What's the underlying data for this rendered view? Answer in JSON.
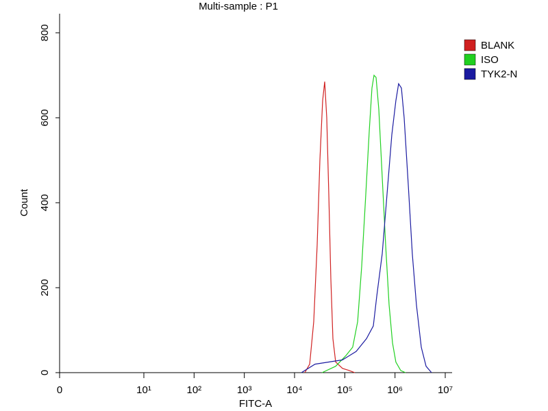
{
  "chart_data": {
    "type": "line",
    "title": "Multi-sample : P1",
    "x_label": "FITC-A",
    "y_label": "Count",
    "xscale": "log",
    "xlim": [
      0,
      10000000
    ],
    "xticks": [
      0,
      {
        "value": 10,
        "label": "10¹"
      },
      {
        "value": 100,
        "label": "10²"
      },
      {
        "value": 1000,
        "label": "10³"
      },
      {
        "value": 10000,
        "label": "10⁴"
      },
      {
        "value": 100000,
        "label": "10⁵"
      },
      {
        "value": 1000000,
        "label": "10⁶"
      },
      {
        "value": 10000000,
        "label": "10⁷"
      }
    ],
    "ylim": [
      0,
      845
    ],
    "yticks": [
      0,
      200,
      400,
      600,
      800
    ],
    "legend": "right",
    "series": [
      {
        "name": "BLANK",
        "color": "#d02020",
        "x": [
          16000,
          20000,
          24100,
          28200,
          32000,
          36200,
          39800,
          43800,
          48100,
          52800,
          58000,
          65800,
          90200,
          123000,
          158000
        ],
        "values": [
          0,
          20,
          120,
          300,
          500,
          640,
          685,
          600,
          420,
          220,
          80,
          25,
          10,
          5,
          0
        ]
      },
      {
        "name": "ISO",
        "color": "#20d020",
        "x": [
          35200,
          65800,
          105000,
          144000,
          180000,
          217000,
          262000,
          307000,
          348000,
          382000,
          420000,
          476000,
          556000,
          651000,
          762000,
          892000,
          1040000,
          1300000,
          1620000
        ],
        "values": [
          0,
          15,
          40,
          60,
          120,
          250,
          420,
          570,
          670,
          700,
          695,
          620,
          460,
          300,
          160,
          70,
          25,
          5,
          0
        ]
      },
      {
        "name": "TYK2-N",
        "color": "#1a1aa0",
        "x": [
          13700,
          25600,
          48100,
          90200,
          169000,
          270000,
          370000,
          433000,
          556000,
          693000,
          865000,
          1040000,
          1180000,
          1340000,
          1520000,
          1840000,
          2210000,
          2670000,
          3330000,
          4150000,
          5340000
        ],
        "values": [
          0,
          20,
          25,
          30,
          50,
          80,
          110,
          180,
          280,
          420,
          560,
          640,
          680,
          670,
          600,
          440,
          280,
          160,
          60,
          15,
          0
        ]
      }
    ]
  }
}
